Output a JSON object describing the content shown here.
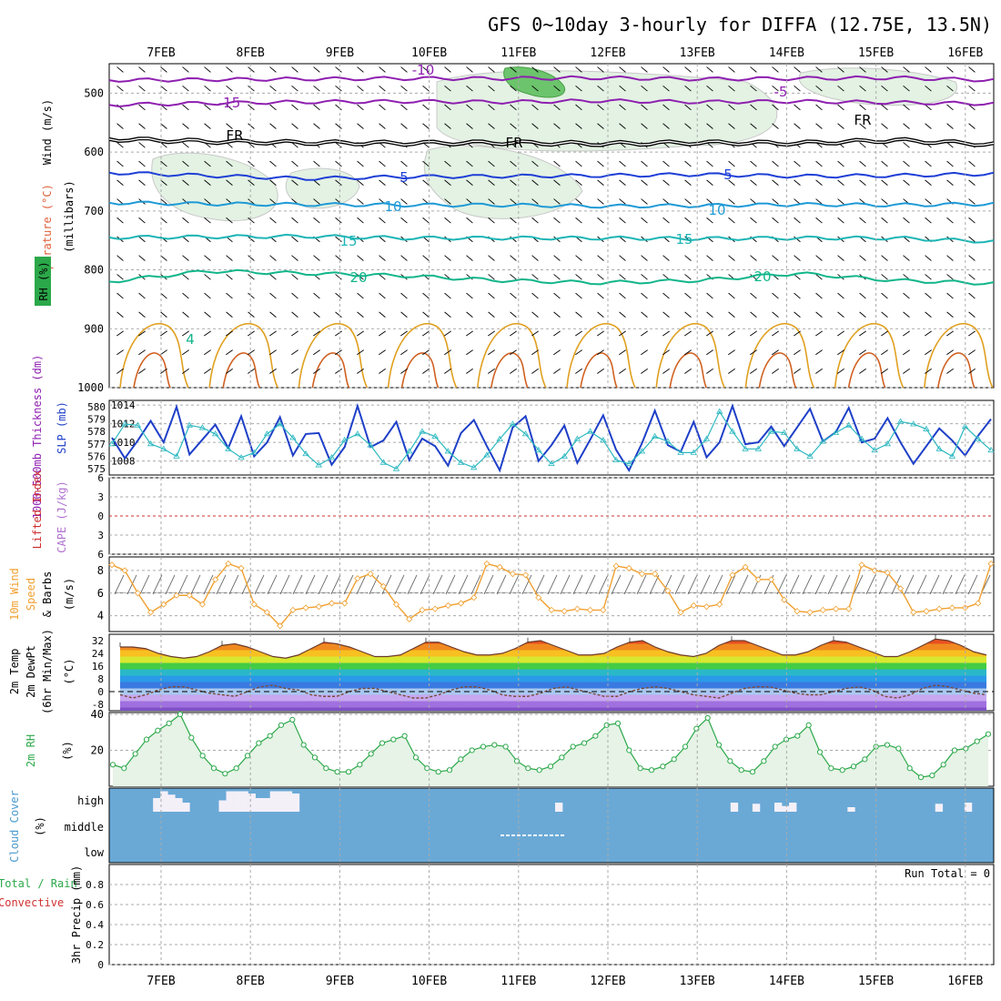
{
  "title": "GFS 0~10day 3-hourly for DIFFA (12.75E, 13.5N)",
  "dates": [
    "7FEB",
    "8FEB",
    "9FEB",
    "10FEB",
    "11FEB",
    "12FEB",
    "13FEB",
    "14FEB",
    "15FEB",
    "16FEB"
  ],
  "colors": {
    "temp_purple": "#8e1fb0",
    "temp_blue": "#1e3fd6",
    "temp_light": "#1e9ad6",
    "temp_teal": "#1db5b5",
    "temp_green": "#12b58a",
    "freezing": "#000000",
    "warm_orange": "#e0a020",
    "dark_orange": "#d06020",
    "rh_fill": "#2ba84a",
    "slp": "#1e3fc8",
    "thickness": "#2bb8c0",
    "wind10m": "#f0a030",
    "cloud": "#6aa9d6",
    "precip_grid": "#999999"
  },
  "panel_labels": {
    "wind": "Wind (m/s)",
    "temperature": "Temperature (°C)",
    "millibars": "(millibars)",
    "rh": "RH (%)",
    "thickness": "1000-500mb Thickness (dm)",
    "slp": "SLP (mb)",
    "lifted": "Lifted Index",
    "cape": "CAPE (J/kg)",
    "wind10_a": "10m Wind",
    "wind10_b": "Speed",
    "wind10_c": "& Barbs",
    "wind10_unit": "(m/s)",
    "temp2m_a": "2m Temp",
    "temp2m_b": "2m DewPt",
    "temp2m_c": "(6hr Min/Max)",
    "temp2m_unit": "(°C)",
    "rh2m": "2m RH",
    "rh2m_unit": "(%)",
    "cloud": "Cloud Cover",
    "cloud_unit": "(%)",
    "precip_a": "Total / Rain",
    "precip_b": "Convective",
    "precip_c": "3hr Precip (mm)",
    "run_total": "Run Total = 0"
  },
  "chart_data": [
    {
      "type": "line",
      "panel": "upper-air cross section",
      "ylabel": "(millibars)",
      "y_ticks": [
        500,
        600,
        700,
        800,
        900,
        1000
      ],
      "y_dir": "pressure decreasing upward",
      "isotherm_labels": [
        {
          "series": "-10",
          "text": "-10"
        },
        {
          "series": "-5",
          "text": "-5"
        },
        {
          "series": "-15",
          "text": "-15"
        },
        {
          "series": "FR",
          "text": "FR"
        },
        {
          "series": "5",
          "text": "5"
        },
        {
          "series": "10",
          "text": "10"
        },
        {
          "series": "15",
          "text": "15"
        },
        {
          "series": "20",
          "text": "20"
        },
        {
          "series": "4",
          "text": "4"
        }
      ],
      "isotherms": [
        {
          "name": "-10",
          "color": "#8e1fb0",
          "p": [
            478,
            477,
            476,
            475,
            475,
            474,
            476,
            475,
            474,
            478
          ]
        },
        {
          "name": "-15",
          "color": "#8e1fb0",
          "p": [
            520,
            517,
            515,
            514,
            515,
            513,
            515,
            514,
            516,
            518
          ]
        },
        {
          "name": "FR",
          "color": "#000000",
          "p": [
            578,
            582,
            584,
            585,
            584,
            586,
            584,
            585,
            580,
            587
          ]
        },
        {
          "name": "5",
          "color": "#1e3fd6",
          "p": [
            635,
            640,
            645,
            642,
            641,
            640,
            638,
            641,
            640,
            637
          ]
        },
        {
          "name": "10",
          "color": "#1e9ad6",
          "p": [
            686,
            688,
            689,
            690,
            690,
            692,
            691,
            689,
            690,
            688
          ]
        },
        {
          "name": "15",
          "color": "#1db5b5",
          "p": [
            745,
            744,
            743,
            746,
            746,
            746,
            747,
            746,
            746,
            752
          ]
        },
        {
          "name": "20",
          "color": "#12b58a",
          "p": [
            820,
            802,
            806,
            810,
            818,
            822,
            818,
            806,
            818,
            823
          ]
        }
      ]
    },
    {
      "type": "line",
      "panel": "SLP / thickness",
      "ylabel": "SLP (mb)",
      "series": [
        {
          "name": "SLP",
          "color": "#1e3fc8",
          "values": [
            1010.5,
            1008.3,
            1010.2,
            1012.3,
            1010.0,
            1013.8,
            1008.7,
            1010.3,
            1011.9,
            1009.4,
            1012.8,
            1008.5,
            1010.0,
            1012.7,
            1008.6,
            1010.9,
            1011.0,
            1007.6,
            1009.5,
            1013.9,
            1009.5,
            1010.2,
            1012.2,
            1008.1,
            1010.4,
            1009.6,
            1007.5,
            1011.0,
            1012.4,
            1009.6,
            1007.0,
            1011.6,
            1012.8,
            1008.0,
            1009.7,
            1011.8,
            1007.8,
            1010.3,
            1012.9,
            1009.2,
            1007.0,
            1009.9,
            1013.4,
            1009.7,
            1009.0,
            1012.2,
            1008.4,
            1010.0,
            1013.9,
            1009.8,
            1010.0,
            1011.7,
            1009.6,
            1011.6,
            1013.6,
            1010.1,
            1011.1,
            1013.7,
            1010.0,
            1010.4,
            1012.6,
            1010.0,
            1007.7,
            1009.6,
            1011.5,
            1010.2,
            1008.6,
            1010.7,
            1012.5
          ]
        },
        {
          "name": "Thickness",
          "color": "#2bb8c0",
          "values": [
            577.0,
            578.6,
            578.5,
            577.0,
            576.6,
            576.0,
            578.5,
            578.3,
            577.8,
            576.6,
            575.9,
            576.3,
            577.8,
            578.6,
            577.5,
            576.2,
            575.3,
            575.9,
            577.3,
            577.8,
            576.9,
            575.5,
            575.0,
            576.4,
            578.0,
            577.6,
            576.4,
            575.5,
            575.1,
            576.1,
            577.4,
            578.6,
            577.8,
            576.5,
            575.4,
            576.0,
            577.4,
            578.0,
            577.3,
            575.7,
            575.4,
            576.4,
            577.6,
            577.2,
            576.3,
            576.3,
            577.4,
            579.6,
            578.0,
            576.6,
            576.6,
            578.0,
            577.9,
            576.6,
            576.0,
            577.2,
            577.9,
            578.5,
            577.4,
            576.5,
            577.0,
            578.8,
            578.6,
            578.2,
            576.6,
            576.0,
            578.4,
            577.4,
            576.5
          ]
        }
      ],
      "y_ticks_left": [
        580,
        579,
        578,
        577,
        576,
        575
      ],
      "y_ticks_right": [
        1014,
        1012,
        1010,
        1008
      ]
    },
    {
      "type": "line",
      "panel": "Lifted Index / CAPE",
      "ylabel": "Lifted Index",
      "y_ticks": [
        -6,
        -3,
        0,
        3,
        6
      ],
      "series": [
        {
          "name": "Lifted Index zero line",
          "values": [
            0
          ]
        }
      ]
    },
    {
      "type": "line",
      "panel": "10m Wind Speed",
      "ylabel": "(m/s)",
      "y_ticks": [
        4,
        6,
        8
      ],
      "series": [
        {
          "name": "10m Wind Speed",
          "color": "#f0a030",
          "values": [
            8.5,
            8.0,
            6.0,
            4.3,
            5.0,
            5.8,
            5.8,
            5.0,
            7.2,
            8.6,
            8.2,
            5.0,
            4.3,
            3.1,
            4.5,
            4.7,
            4.8,
            5.1,
            5.1,
            7.3,
            7.7,
            6.6,
            5.0,
            3.7,
            4.5,
            4.6,
            4.9,
            5.1,
            5.6,
            8.6,
            8.3,
            7.7,
            7.6,
            5.6,
            4.5,
            4.4,
            4.6,
            4.5,
            4.5,
            8.4,
            8.2,
            7.7,
            7.7,
            6.2,
            4.3,
            4.9,
            4.8,
            5.0,
            7.6,
            8.3,
            7.2,
            7.2,
            5.4,
            4.4,
            4.3,
            4.5,
            4.6,
            4.6,
            8.5,
            8.0,
            7.8,
            6.4,
            4.3,
            4.4,
            4.6,
            4.7,
            4.7,
            5.1,
            8.6
          ]
        }
      ]
    },
    {
      "type": "area",
      "panel": "2m Temp / DewPt",
      "ylabel": "(°C)",
      "y_ticks": [
        32,
        24,
        16,
        8,
        0,
        -8
      ],
      "series": [
        {
          "name": "2m Temp",
          "values": [
            28,
            28,
            27,
            24,
            22,
            21,
            22,
            25,
            29,
            30,
            28,
            25,
            22,
            21,
            23,
            27,
            31,
            30,
            28,
            25,
            22,
            22,
            23,
            27,
            31,
            31,
            28,
            25,
            23,
            23,
            24,
            27,
            31,
            32,
            29,
            26,
            23,
            23,
            24,
            28,
            31,
            32,
            28,
            25,
            23,
            22,
            24,
            29,
            32,
            32,
            29,
            26,
            23,
            23,
            25,
            29,
            32,
            31,
            28,
            25,
            22,
            22,
            25,
            29,
            33,
            32,
            29,
            25,
            23
          ]
        },
        {
          "name": "2m DewPt",
          "values": [
            -2,
            -4,
            -2,
            1,
            3,
            3,
            1,
            -1,
            -2,
            -3,
            0,
            3,
            4,
            2,
            1,
            -2,
            -3,
            -3,
            0,
            2,
            2,
            0,
            -2,
            -4,
            -4,
            -2,
            1,
            3,
            3,
            1,
            -2,
            -3,
            -3,
            -1,
            2,
            3,
            1,
            -1,
            -3,
            -3,
            0,
            2,
            3,
            2,
            0,
            -2,
            -3,
            -4,
            -1,
            2,
            3,
            3,
            1,
            -1,
            -2,
            -2,
            0,
            2,
            3,
            1,
            -3,
            -4,
            -2,
            2,
            4,
            3,
            1,
            -1,
            -2
          ]
        }
      ]
    },
    {
      "type": "area",
      "panel": "2m RH",
      "ylabel": "(%)",
      "y_ticks": [
        20,
        40
      ],
      "series": [
        {
          "name": "2m RH",
          "values": [
            12,
            10,
            18,
            26,
            31,
            35,
            40,
            27,
            17,
            10,
            7,
            10,
            17,
            24,
            28,
            34,
            37,
            23,
            16,
            10,
            8,
            8,
            12,
            18,
            24,
            26,
            28,
            16,
            10,
            8,
            9,
            15,
            20,
            22,
            23,
            22,
            14,
            10,
            9,
            11,
            16,
            22,
            24,
            28,
            34,
            35,
            20,
            10,
            9,
            11,
            15,
            22,
            32,
            38,
            23,
            14,
            9,
            8,
            14,
            22,
            26,
            28,
            34,
            19,
            10,
            9,
            11,
            15,
            22,
            23,
            21,
            10,
            5,
            6,
            12,
            20,
            21,
            25,
            29
          ]
        }
      ]
    },
    {
      "type": "heatmap",
      "panel": "Cloud Cover",
      "ylabel": "(%)",
      "y_ticks": [
        "high",
        "middle",
        "low"
      ],
      "series": [
        {
          "name": "high",
          "values": [
            0,
            0,
            0,
            0,
            0,
            0,
            60,
            90,
            75,
            60,
            40,
            0,
            0,
            0,
            0,
            50,
            90,
            90,
            90,
            80,
            60,
            60,
            90,
            90,
            90,
            80,
            0,
            0,
            0,
            0,
            0,
            0,
            0,
            0,
            0,
            0,
            0,
            0,
            0,
            0,
            0,
            0,
            0,
            0,
            0,
            0,
            0,
            0,
            0,
            0,
            0,
            0,
            0,
            0,
            0,
            0,
            0,
            0,
            0,
            0,
            0,
            40,
            0,
            0,
            0,
            0,
            0,
            0,
            0,
            0,
            0,
            0,
            0,
            0,
            0,
            0,
            0,
            0,
            0,
            0,
            0,
            0,
            0,
            0,
            0,
            40,
            0,
            0,
            35,
            0,
            0,
            40,
            25,
            40,
            0,
            0,
            0,
            0,
            0,
            0,
            0,
            20,
            0,
            0,
            0,
            0,
            0,
            0,
            0,
            0,
            0,
            0,
            0,
            35,
            0,
            0,
            0,
            40,
            0,
            0,
            0
          ]
        },
        {
          "name": "middle",
          "values": [
            0,
            0,
            0,
            0,
            0,
            0,
            0,
            0,
            0,
            0,
            0,
            0,
            0,
            0,
            0,
            0,
            0,
            0,
            0,
            0,
            0,
            0,
            0,
            0,
            0,
            0,
            0,
            0,
            0,
            0,
            0,
            0,
            0,
            0,
            0,
            0,
            0,
            0,
            0,
            0,
            0,
            0,
            0,
            0,
            0,
            0,
            0,
            0,
            0,
            0,
            0,
            0,
            0,
            0,
            0,
            0,
            0,
            0,
            0,
            0,
            0,
            0,
            0,
            0,
            0,
            0,
            0,
            0,
            0,
            0,
            0,
            0,
            0,
            0,
            0,
            0,
            0,
            0,
            0,
            0,
            0,
            0,
            0,
            0,
            0,
            0,
            0,
            0,
            0,
            0,
            0,
            0,
            0,
            0,
            0,
            0,
            0,
            0,
            0,
            0,
            0,
            0,
            0,
            0,
            0,
            0,
            0,
            0,
            0,
            0,
            0,
            0,
            0,
            0,
            0,
            0,
            0,
            0,
            0,
            0
          ]
        },
        {
          "name": "low",
          "values": [
            0,
            0,
            0,
            0,
            0,
            0,
            0,
            0,
            0,
            0,
            0,
            0,
            0,
            0,
            0,
            0,
            0,
            0,
            0,
            0,
            0,
            0,
            0,
            0,
            0,
            0,
            0,
            0,
            0,
            0,
            0,
            0,
            0,
            0,
            0,
            0,
            0,
            0,
            0,
            0,
            0,
            0,
            0,
            0,
            0,
            0,
            0,
            0,
            0,
            0,
            0,
            0,
            0,
            0,
            0,
            0,
            0,
            0,
            0,
            0,
            0,
            0,
            0,
            0,
            0,
            0,
            0,
            0,
            0,
            0,
            0,
            0,
            0,
            0,
            0,
            0,
            0,
            0,
            0,
            0,
            0,
            0,
            0,
            0,
            0,
            0,
            0,
            0,
            0,
            0,
            0,
            0,
            0,
            0,
            0,
            0,
            0,
            0,
            0,
            0,
            0,
            0,
            0,
            0,
            0,
            0,
            0,
            0,
            0,
            0,
            0,
            0,
            0,
            0,
            0,
            0,
            0,
            0,
            0,
            0,
            0
          ]
        }
      ]
    },
    {
      "type": "bar",
      "panel": "3hr Precip",
      "ylabel": "3hr Precip (mm)",
      "y_ticks": [
        0,
        0.2,
        0.4,
        0.6,
        0.8
      ],
      "ylim": [
        0,
        1.0
      ],
      "values": [
        0
      ]
    }
  ]
}
